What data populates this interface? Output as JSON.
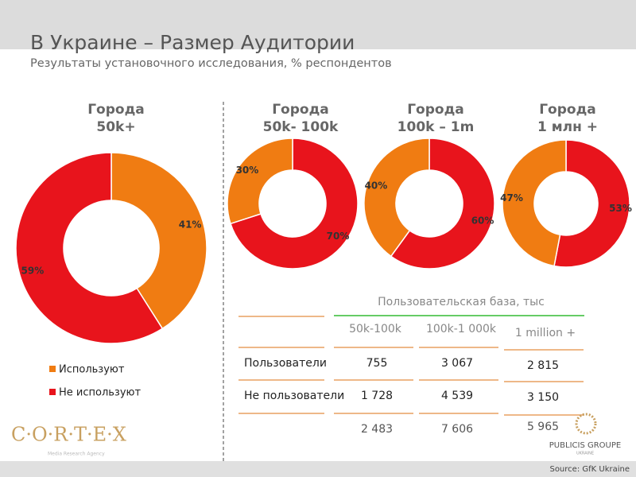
{
  "header": {
    "title": "В Украине – Размер Аудитории",
    "subtitle": "Результаты установочного исследования, % респондентов"
  },
  "chart_data": [
    {
      "type": "donut",
      "title": "Города",
      "subtitle": "50k+",
      "categories": [
        "Используют",
        "Не используют"
      ],
      "values": [
        41,
        59
      ],
      "value_labels": [
        "41%",
        "59%"
      ],
      "colors": [
        "#f07c12",
        "#e8141c"
      ]
    },
    {
      "type": "donut",
      "title": "Города",
      "subtitle": "50k- 100k",
      "categories": [
        "Не используют",
        "Используют"
      ],
      "values": [
        70,
        30
      ],
      "value_labels": [
        "70%",
        "30%"
      ],
      "colors": [
        "#e8141c",
        "#f07c12"
      ]
    },
    {
      "type": "donut",
      "title": "Города",
      "subtitle": "100k – 1m",
      "categories": [
        "Не используют",
        "Используют"
      ],
      "values": [
        60,
        40
      ],
      "value_labels": [
        "60%",
        "40%"
      ],
      "colors": [
        "#e8141c",
        "#f07c12"
      ]
    },
    {
      "type": "donut",
      "title": "Города",
      "subtitle": "1 млн +",
      "categories": [
        "Не используют",
        "Используют"
      ],
      "values": [
        53,
        47
      ],
      "value_labels": [
        "53%",
        "47%"
      ],
      "colors": [
        "#e8141c",
        "#f07c12"
      ]
    }
  ],
  "table": {
    "title": "Пользовательская база, тыс",
    "columns": [
      "50k-100k",
      "100k-1 000k",
      "1 million +"
    ],
    "rows": [
      [
        "Пользователи",
        "755",
        "3 067",
        "2 815"
      ],
      [
        "Не пользователи",
        "1 728",
        "4 539",
        "3 150"
      ],
      [
        "",
        "2 483",
        "7 606",
        "5 965"
      ]
    ]
  },
  "logos": {
    "cortex": "C·O·R·T·E·X",
    "cortex_sub": "Media Research Agency",
    "publicis": "PUBLICIS GROUPE",
    "publicis_sub": "UKRAINE"
  },
  "source": "Source: GfK Ukraine"
}
